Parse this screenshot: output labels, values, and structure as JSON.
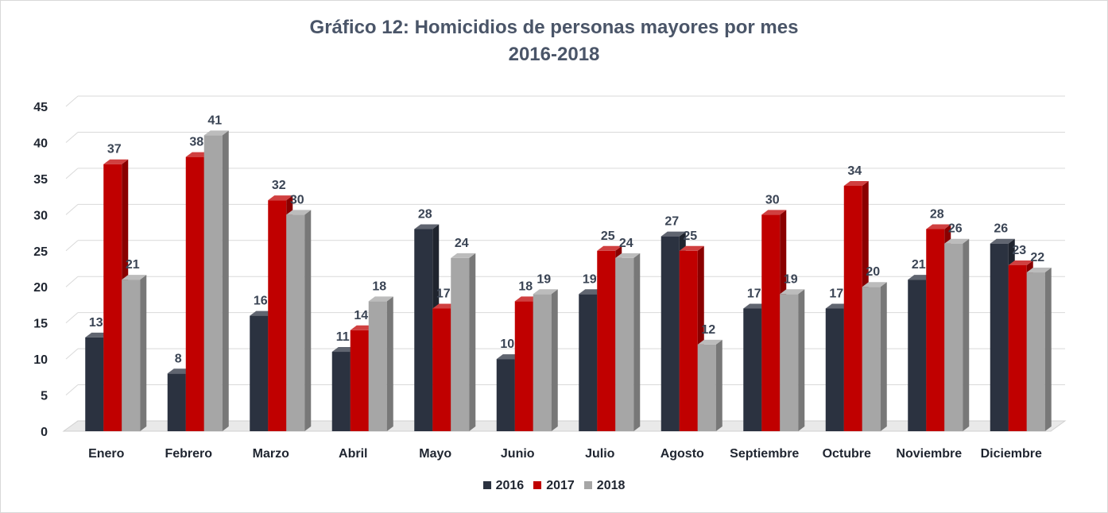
{
  "chart_data": {
    "type": "bar",
    "title": "Gráfico 12: Homicidios de personas mayores por mes",
    "subtitle": "2016-2018",
    "categories": [
      "Enero",
      "Febrero",
      "Marzo",
      "Abril",
      "Mayo",
      "Junio",
      "Julio",
      "Agosto",
      "Septiembre",
      "Octubre",
      "Noviembre",
      "Diciembre"
    ],
    "series": [
      {
        "name": "2016",
        "color": "#2b3240",
        "values": [
          13,
          8,
          16,
          11,
          28,
          10,
          19,
          27,
          17,
          17,
          21,
          26
        ]
      },
      {
        "name": "2017",
        "color": "#c00000",
        "values": [
          37,
          38,
          32,
          14,
          17,
          18,
          25,
          25,
          30,
          34,
          28,
          23
        ]
      },
      {
        "name": "2018",
        "color": "#a6a6a6",
        "values": [
          21,
          41,
          30,
          18,
          24,
          19,
          24,
          12,
          19,
          20,
          26,
          22
        ]
      }
    ],
    "yticks": [
      0,
      5,
      10,
      15,
      20,
      25,
      30,
      35,
      40,
      45
    ],
    "ylim": [
      0,
      45
    ],
    "xlabel": "",
    "ylabel": "",
    "grid": true,
    "data_labels": true,
    "legend_position": "bottom",
    "style": "3d-column"
  }
}
